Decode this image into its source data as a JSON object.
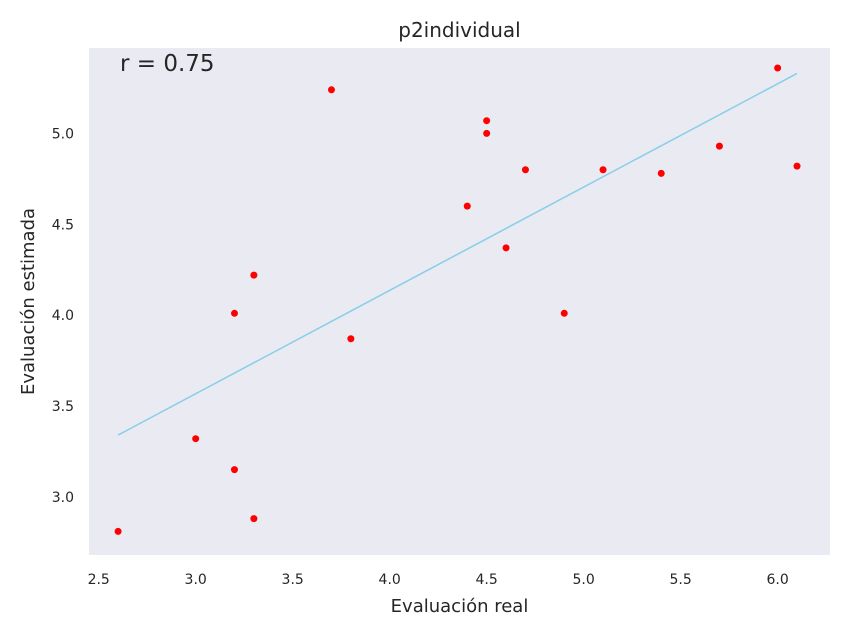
{
  "chart_data": {
    "type": "scatter",
    "title": "p2individual",
    "xlabel": "Evaluación real",
    "ylabel": "Evaluación estimada",
    "annotation": "r = 0.75",
    "xlim": [
      2.45,
      6.27
    ],
    "ylim": [
      2.68,
      5.47
    ],
    "xticks": [
      "2.5",
      "3.0",
      "3.5",
      "4.0",
      "4.5",
      "5.0",
      "5.5",
      "6.0"
    ],
    "yticks": [
      "3.0",
      "3.5",
      "4.0",
      "4.5",
      "5.0"
    ],
    "grid": false,
    "background_color": "#eaeaf2",
    "point_color": "#ff0000",
    "line_color": "#87ceeb",
    "points": [
      {
        "x": 2.6,
        "y": 2.81
      },
      {
        "x": 3.0,
        "y": 3.32
      },
      {
        "x": 3.2,
        "y": 3.15
      },
      {
        "x": 3.2,
        "y": 4.01
      },
      {
        "x": 3.3,
        "y": 2.88
      },
      {
        "x": 3.3,
        "y": 4.22
      },
      {
        "x": 3.7,
        "y": 5.24
      },
      {
        "x": 3.8,
        "y": 3.87
      },
      {
        "x": 4.4,
        "y": 4.6
      },
      {
        "x": 4.5,
        "y": 5.0
      },
      {
        "x": 4.5,
        "y": 5.07
      },
      {
        "x": 4.6,
        "y": 4.37
      },
      {
        "x": 4.7,
        "y": 4.8
      },
      {
        "x": 4.9,
        "y": 4.01
      },
      {
        "x": 5.1,
        "y": 4.8
      },
      {
        "x": 5.4,
        "y": 4.78
      },
      {
        "x": 5.7,
        "y": 4.93
      },
      {
        "x": 6.0,
        "y": 5.36
      },
      {
        "x": 6.1,
        "y": 4.82
      }
    ],
    "fit_line": {
      "x": [
        2.6,
        6.1
      ],
      "y": [
        3.34,
        5.33
      ]
    }
  }
}
